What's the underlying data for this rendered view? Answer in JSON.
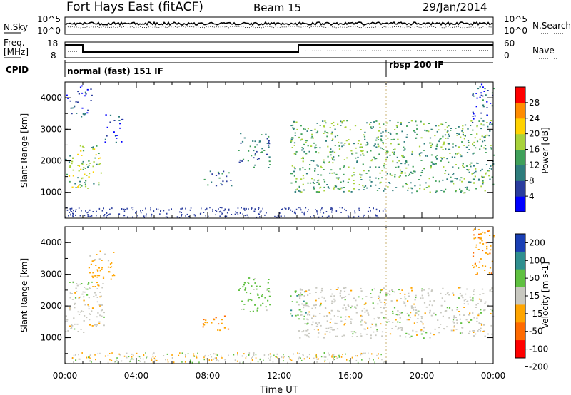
{
  "header": {
    "station": "Fort Hays East (fitACF)",
    "beam": "Beam 15",
    "date": "29/Jan/2014"
  },
  "noise_panel": {
    "left_label": "N.Sky",
    "right_label": "N.Search",
    "left_ticks": [
      "10^5",
      "10^0"
    ],
    "right_ticks": [
      "10^5",
      "10^0"
    ]
  },
  "freq_panel": {
    "left_label_line1": "Freq.",
    "left_label_line2": "[MHz]",
    "left_ticks": [
      "18",
      "8"
    ],
    "right_ticks": [
      "60",
      "0"
    ],
    "right_label": "Nave"
  },
  "cpid_panel": {
    "label": "CPID",
    "programs": [
      {
        "name": "normal (fast) 151 IF",
        "start_hour": 0
      },
      {
        "name": "rbsp 200 IF",
        "start_hour": 18
      }
    ]
  },
  "power_colorbar": {
    "label": "Power [dB]",
    "ticks": [
      "28",
      "24",
      "20",
      "16",
      "12",
      "8",
      "4"
    ],
    "colors": [
      "#0000ff",
      "#2a3d9e",
      "#2e7d7d",
      "#3fa05a",
      "#a8d23a",
      "#ffd200",
      "#ff8c00",
      "#ff0000"
    ]
  },
  "velocity_colorbar": {
    "label": "Velocity [m s-1]",
    "ticks": [
      "200",
      "100",
      "50",
      "15",
      "-15",
      "-50",
      "-100",
      "-200"
    ],
    "colors": [
      "#1a3fb4",
      "#2f8f8f",
      "#5fc040",
      "#c8c8c0",
      "#ffa500",
      "#ff6a00",
      "#ff0000"
    ]
  },
  "chart_data": [
    {
      "type": "heatmap",
      "name": "power",
      "ylabel": "Slant Range [km]",
      "yticks": [
        "4000",
        "3000",
        "2000",
        "1000"
      ],
      "ylim": [
        180,
        4500
      ],
      "xlim": [
        0,
        24
      ],
      "colorbar_label": "Power [dB]",
      "regions": [
        {
          "t": [
            0.0,
            2.0
          ],
          "r": [
            1150,
            2500
          ],
          "v": 16
        },
        {
          "t": [
            2.2,
            3.2
          ],
          "r": [
            2600,
            3500
          ],
          "v": 6
        },
        {
          "t": [
            7.7,
            9.3
          ],
          "r": [
            1200,
            1700
          ],
          "v": 9
        },
        {
          "t": [
            9.7,
            11.5
          ],
          "r": [
            1800,
            3000
          ],
          "v": 10
        },
        {
          "t": [
            12.6,
            24.0
          ],
          "r": [
            1000,
            3300
          ],
          "v": 14
        },
        {
          "t": [
            22.8,
            24.0
          ],
          "r": [
            3200,
            4500
          ],
          "v": 7
        },
        {
          "t": [
            0.0,
            1.5
          ],
          "r": [
            3400,
            4400
          ],
          "v": 6
        }
      ]
    },
    {
      "type": "heatmap",
      "name": "velocity",
      "ylabel": "Slant Range [km]",
      "yticks": [
        "4000",
        "3000",
        "2000",
        "1000"
      ],
      "ylim": [
        180,
        4500
      ],
      "xlim": [
        0,
        24
      ],
      "xlabel": "Time UT",
      "xticks": [
        "00:00",
        "04:00",
        "08:00",
        "12:00",
        "16:00",
        "20:00",
        "00:00"
      ],
      "colorbar_label": "Velocity [m s-1]",
      "regions": [
        {
          "t": [
            0.0,
            2.2
          ],
          "r": [
            1150,
            2800
          ],
          "v": 0
        },
        {
          "t": [
            1.3,
            2.8
          ],
          "r": [
            2600,
            3800
          ],
          "v": -30
        },
        {
          "t": [
            7.7,
            9.3
          ],
          "r": [
            1200,
            1700
          ],
          "v": -40
        },
        {
          "t": [
            9.7,
            11.5
          ],
          "r": [
            1800,
            2900
          ],
          "v": 30
        },
        {
          "t": [
            12.6,
            13.5
          ],
          "r": [
            1600,
            2500
          ],
          "v": 40
        },
        {
          "t": [
            13.0,
            24.0
          ],
          "r": [
            1000,
            2600
          ],
          "v": 0
        },
        {
          "t": [
            22.8,
            24.0
          ],
          "r": [
            3000,
            4500
          ],
          "v": -40
        }
      ]
    }
  ]
}
